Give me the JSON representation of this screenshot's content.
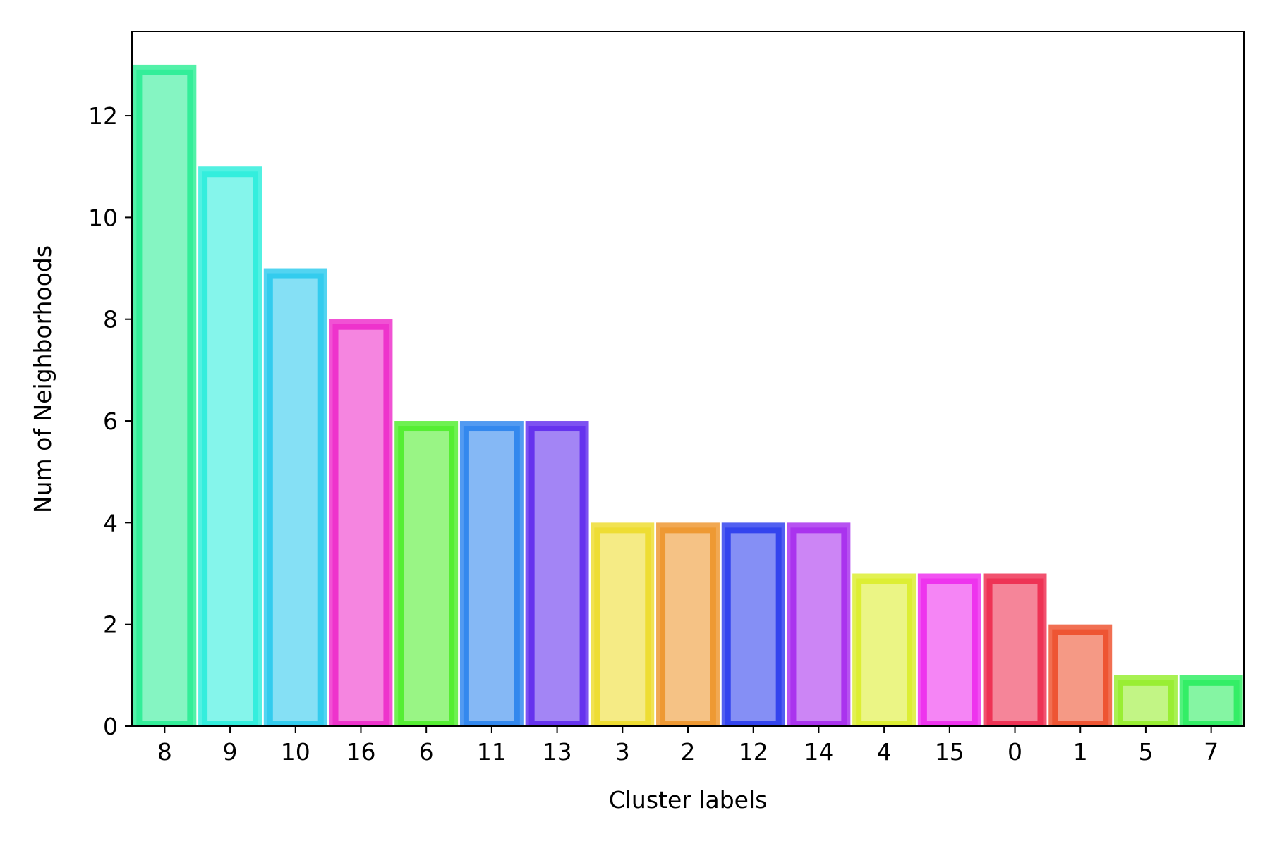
{
  "chart_data": {
    "type": "bar",
    "title": "",
    "xlabel": "Cluster labels",
    "ylabel": "Num of Neighborhoods",
    "categories": [
      "8",
      "9",
      "10",
      "16",
      "6",
      "11",
      "13",
      "3",
      "2",
      "12",
      "14",
      "4",
      "15",
      "0",
      "1",
      "5",
      "7"
    ],
    "values": [
      13,
      11,
      9,
      8,
      6,
      6,
      6,
      4,
      4,
      4,
      4,
      3,
      3,
      3,
      2,
      1,
      1
    ],
    "colors": [
      "#33ee99",
      "#33eedd",
      "#33ccee",
      "#ee33cc",
      "#55ee33",
      "#3388ee",
      "#6633ee",
      "#eedd33",
      "#ee9933",
      "#3344ee",
      "#aa33ee",
      "#ddee33",
      "#ee33ee",
      "#ee3355",
      "#ee5533",
      "#99ee33",
      "#33ee66"
    ],
    "yticks": [
      "0",
      "2",
      "4",
      "6",
      "8",
      "10",
      "12"
    ],
    "ylim": [
      0,
      13.65
    ],
    "grid": false,
    "legend": "none"
  }
}
